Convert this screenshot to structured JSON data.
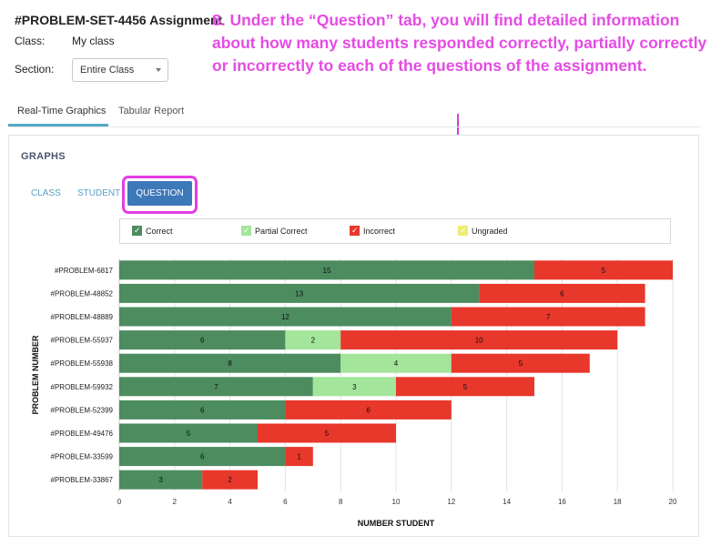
{
  "assignment_title": "#PROBLEM-SET-4456 Assignment",
  "class_label": "Class:",
  "class_value": "My class",
  "section_label": "Section:",
  "section_select": "Entire Class",
  "annotation": "8. Under the “Question” tab, you will find detailed information about how many students responded correctly, partially correctly or incorrectly to each of the questions of the assignment.",
  "tabs": [
    {
      "label": "Real-Time Graphics",
      "active": true
    },
    {
      "label": "Tabular Report",
      "active": false
    }
  ],
  "graphs_heading": "GRAPHS",
  "subtabs": [
    {
      "label": "CLASS",
      "active": false
    },
    {
      "label": "STUDENT",
      "active": false
    },
    {
      "label": "QUESTION",
      "active": true
    }
  ],
  "colors": {
    "correct": "#4c8c5f",
    "partial": "#a3e59a",
    "incorrect": "#e8372b",
    "ungraded": "#efec72",
    "accent": "#3d78b8",
    "annotation": "#e54be3"
  },
  "icons": {
    "legend_check": "check-icon",
    "arrow": "arrow-down-icon",
    "select": "chevron-down-icon"
  },
  "chart_data": {
    "type": "bar",
    "orientation": "horizontal",
    "stacked": true,
    "categories": [
      "#PROBLEM-6817",
      "#PROBLEM-48852",
      "#PROBLEM-48889",
      "#PROBLEM-55937",
      "#PROBLEM-55938",
      "#PROBLEM-59932",
      "#PROBLEM-52399",
      "#PROBLEM-49476",
      "#PROBLEM-33599",
      "#PROBLEM-33867"
    ],
    "series": [
      {
        "name": "Correct",
        "values": [
          15,
          13,
          12,
          6,
          8,
          7,
          6,
          5,
          6,
          3
        ]
      },
      {
        "name": "Partial Correct",
        "values": [
          0,
          0,
          0,
          2,
          4,
          3,
          0,
          0,
          0,
          0
        ]
      },
      {
        "name": "Incorrect",
        "values": [
          5,
          6,
          7,
          10,
          5,
          5,
          6,
          5,
          1,
          2
        ]
      },
      {
        "name": "Ungraded",
        "values": [
          0,
          0,
          0,
          0,
          0,
          0,
          0,
          0,
          0,
          0
        ]
      }
    ],
    "xlabel": "NUMBER STUDENT",
    "ylabel": "PROBLEM NUMBER",
    "xlim": [
      0,
      20
    ],
    "xticks": [
      "0",
      "2",
      "4",
      "6",
      "8",
      "10",
      "12",
      "14",
      "16",
      "18",
      "20"
    ],
    "grid": true,
    "legend_position": "top"
  }
}
